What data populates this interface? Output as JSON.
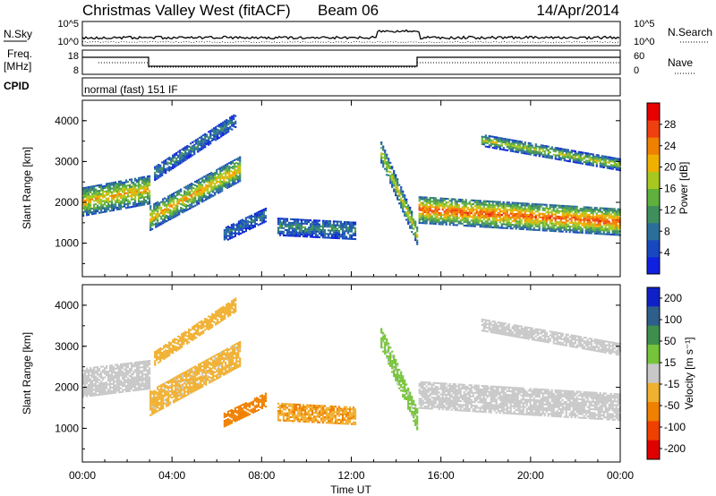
{
  "header": {
    "station": "Christmas Valley West (fitACF)",
    "beam": "Beam 06",
    "date": "14/Apr/2014"
  },
  "nsky_panel": {
    "left_label": "N.Sky",
    "right_label": "N.Search",
    "y_ticks_left": [
      "10^5",
      "10^0"
    ],
    "y_ticks_right": [
      "10^5",
      "10^0"
    ]
  },
  "freq_panel": {
    "left_label_1": "Freq.",
    "left_label_2": "[MHz]",
    "right_label": "Nave",
    "y_ticks_left": [
      "18",
      "8"
    ],
    "y_ticks_right": [
      "60",
      "0"
    ]
  },
  "cpid_panel": {
    "label": "CPID",
    "mode_text": "normal (fast) 151 IF"
  },
  "colors": {
    "power_scale": [
      "#1020e0",
      "#1848c0",
      "#2a6f9a",
      "#3f8f5c",
      "#5fb03c",
      "#a8c820",
      "#f0b000",
      "#f08000",
      "#f04010",
      "#e80000"
    ],
    "velocity_scale": [
      "#1020c8",
      "#2e5e8a",
      "#3f8f4c",
      "#76c43a",
      "#c8c8c8",
      "#f0b030",
      "#f08000",
      "#f04000",
      "#e00000"
    ]
  },
  "chart_data": [
    {
      "type": "heatmap",
      "panel": "power",
      "ylabel": "Slant Range [km]",
      "y_ticks": [
        "1000",
        "2000",
        "3000",
        "4000"
      ],
      "ylim": [
        180,
        4500
      ],
      "xlim": [
        0,
        24
      ],
      "colorbar": {
        "label": "Power [dB]",
        "ticks": [
          "4",
          "8",
          "12",
          "16",
          "20",
          "24",
          "28"
        ],
        "range": [
          0,
          32
        ]
      },
      "echo_regions": [
        {
          "t_start": 0.0,
          "t_end": 3.0,
          "range_center_start": 2000,
          "range_center_end": 2300,
          "thickness_km": 700,
          "power_db": 22
        },
        {
          "t_start": 3.0,
          "t_end": 7.0,
          "range_center_start": 1600,
          "range_center_end": 2800,
          "thickness_km": 600,
          "power_db": 22
        },
        {
          "t_start": 3.2,
          "t_end": 6.8,
          "range_center_start": 2700,
          "range_center_end": 4000,
          "thickness_km": 350,
          "power_db": 10
        },
        {
          "t_start": 6.3,
          "t_end": 8.2,
          "range_center_start": 1200,
          "range_center_end": 1700,
          "thickness_km": 350,
          "power_db": 9
        },
        {
          "t_start": 8.7,
          "t_end": 12.2,
          "range_center_start": 1400,
          "range_center_end": 1300,
          "thickness_km": 450,
          "power_db": 11
        },
        {
          "t_start": 13.3,
          "t_end": 14.9,
          "range_center_start": 3200,
          "range_center_end": 1200,
          "thickness_km": 500,
          "power_db": 20
        },
        {
          "t_start": 15.0,
          "t_end": 24.0,
          "range_center_start": 1800,
          "range_center_end": 1500,
          "thickness_km": 650,
          "power_db": 27
        },
        {
          "t_start": 17.8,
          "t_end": 24.0,
          "range_center_start": 3500,
          "range_center_end": 2900,
          "thickness_km": 280,
          "power_db": 18
        }
      ]
    },
    {
      "type": "heatmap",
      "panel": "velocity",
      "ylabel": "Slant Range [km]",
      "xlabel": "Time UT",
      "x_ticks": [
        "00:00",
        "04:00",
        "08:00",
        "12:00",
        "16:00",
        "20:00",
        "00:00"
      ],
      "y_ticks": [
        "1000",
        "2000",
        "3000",
        "4000"
      ],
      "ylim": [
        180,
        4500
      ],
      "xlim": [
        0,
        24
      ],
      "colorbar": {
        "label": "Velocity [m s⁻¹]",
        "ticks": [
          "200",
          "100",
          "50",
          "15",
          "-15",
          "-50",
          "-100",
          "-200"
        ],
        "range": [
          -250,
          250
        ]
      },
      "echo_regions": [
        {
          "t_start": 0.0,
          "t_end": 3.0,
          "range_center_start": 2100,
          "range_center_end": 2300,
          "thickness_km": 700,
          "velocity_ms": 0
        },
        {
          "t_start": 3.0,
          "t_end": 7.0,
          "range_center_start": 1600,
          "range_center_end": 2800,
          "thickness_km": 600,
          "velocity_ms": -40
        },
        {
          "t_start": 3.2,
          "t_end": 6.8,
          "range_center_start": 2700,
          "range_center_end": 4000,
          "thickness_km": 350,
          "velocity_ms": -45
        },
        {
          "t_start": 6.3,
          "t_end": 8.2,
          "range_center_start": 1200,
          "range_center_end": 1700,
          "thickness_km": 350,
          "velocity_ms": -110
        },
        {
          "t_start": 8.7,
          "t_end": 12.2,
          "range_center_start": 1400,
          "range_center_end": 1300,
          "thickness_km": 450,
          "velocity_ms": -80
        },
        {
          "t_start": 13.3,
          "t_end": 14.9,
          "range_center_start": 3200,
          "range_center_end": 1200,
          "thickness_km": 500,
          "velocity_ms": 40
        },
        {
          "t_start": 15.0,
          "t_end": 24.0,
          "range_center_start": 1800,
          "range_center_end": 1500,
          "thickness_km": 650,
          "velocity_ms": 0
        },
        {
          "t_start": 17.8,
          "t_end": 24.0,
          "range_center_start": 3500,
          "range_center_end": 2900,
          "thickness_km": 280,
          "velocity_ms": 0
        }
      ]
    }
  ]
}
